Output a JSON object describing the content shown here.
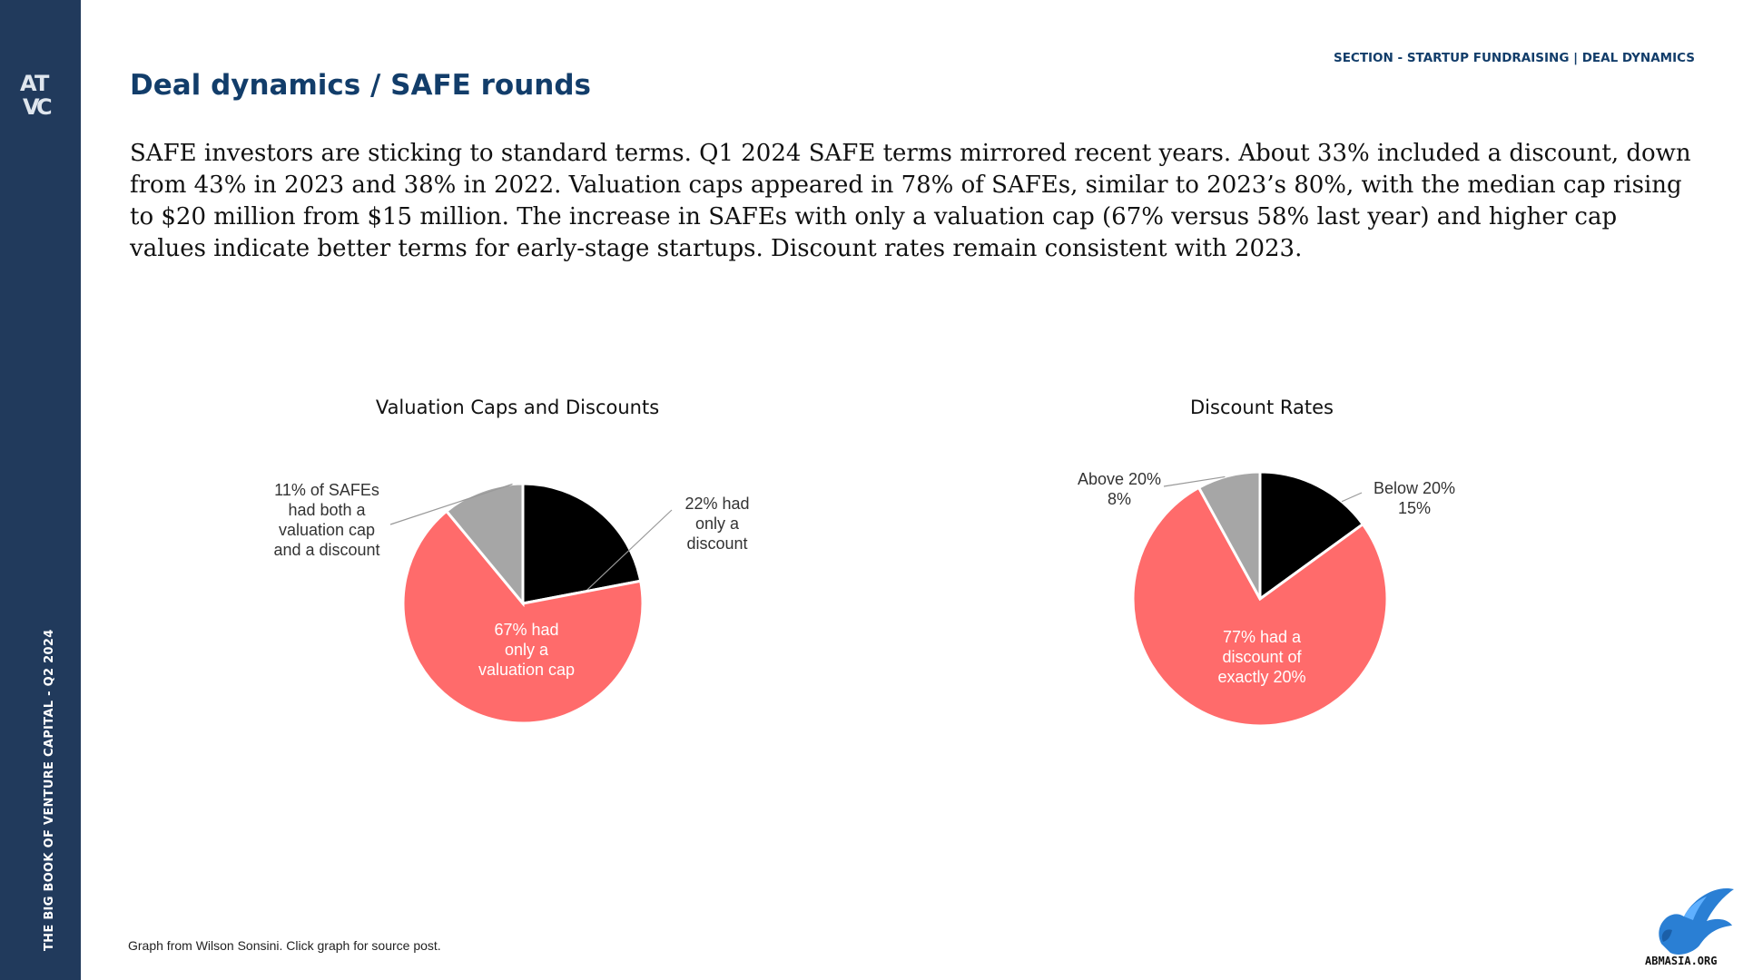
{
  "sidebar": {
    "logo_icon": "atvc-logo-icon",
    "vertical_title": "THE BIG BOOK OF VENTURE CAPITAL - Q2 2024"
  },
  "header": {
    "section_label": "SECTION - STARTUP FUNDRAISING | DEAL DYNAMICS",
    "title": "Deal dynamics / SAFE rounds"
  },
  "body_text": "SAFE investors are sticking to standard terms. Q1 2024 SAFE terms mirrored recent years. About 33% included a discount, down from 43% in 2023 and 38% in 2022. Valuation caps appeared in 78% of SAFEs, similar to 2023’s 80%, with the median cap rising to $20 million from $15 million. The increase in SAFEs with only a valuation cap (67% versus 58% last year) and higher cap values indicate better terms for early-stage startups. Discount rates remain consistent with 2023.",
  "chart_data": [
    {
      "type": "pie",
      "title": "Valuation Caps and Discounts",
      "slices": [
        {
          "value": 22,
          "color": "#000000",
          "label_lines": [
            "22% had",
            "only a",
            "discount"
          ]
        },
        {
          "value": 67,
          "color": "#ff6b6b",
          "label_lines": [
            "67% had",
            "only a",
            "valuation cap"
          ]
        },
        {
          "value": 11,
          "color": "#a6a6a6",
          "label_lines": [
            "11% of SAFEs",
            "had both a",
            "valuation cap",
            "and a discount"
          ]
        }
      ]
    },
    {
      "type": "pie",
      "title": "Discount Rates",
      "slices": [
        {
          "value": 15,
          "color": "#000000",
          "label_lines": [
            "Below 20%",
            "15%"
          ]
        },
        {
          "value": 77,
          "color": "#ff6b6b",
          "label_lines": [
            "77% had a",
            "discount of",
            "exactly 20%"
          ]
        },
        {
          "value": 8,
          "color": "#a6a6a6",
          "label_lines": [
            "Above 20%",
            "8%"
          ]
        }
      ]
    }
  ],
  "footnote": "Graph from Wilson Sonsini. Click graph for source post.",
  "watermark": {
    "icon": "eagle-logo-icon",
    "text": "ABMASIA.ORG"
  }
}
